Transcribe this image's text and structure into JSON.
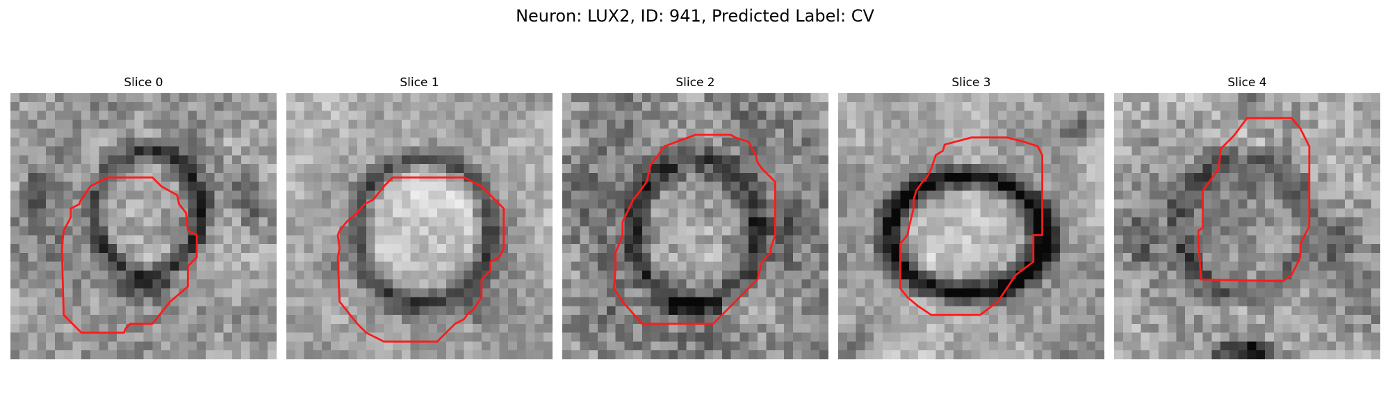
{
  "figure": {
    "title": "Neuron: LUX2, ID: 941, Predicted Label: CV"
  },
  "image": {
    "description": "Five grayscale microscopy slices of the same neuron with a red segmentation contour overlaid",
    "contour_color": "#ff1a1a"
  },
  "panels": [
    {
      "title": "Slice 0",
      "variant": "ring"
    },
    {
      "title": "Slice 1",
      "variant": "bright"
    },
    {
      "title": "Slice 2",
      "variant": "textured"
    },
    {
      "title": "Slice 3",
      "variant": "darkring"
    },
    {
      "title": "Slice 4",
      "variant": "faint"
    }
  ]
}
